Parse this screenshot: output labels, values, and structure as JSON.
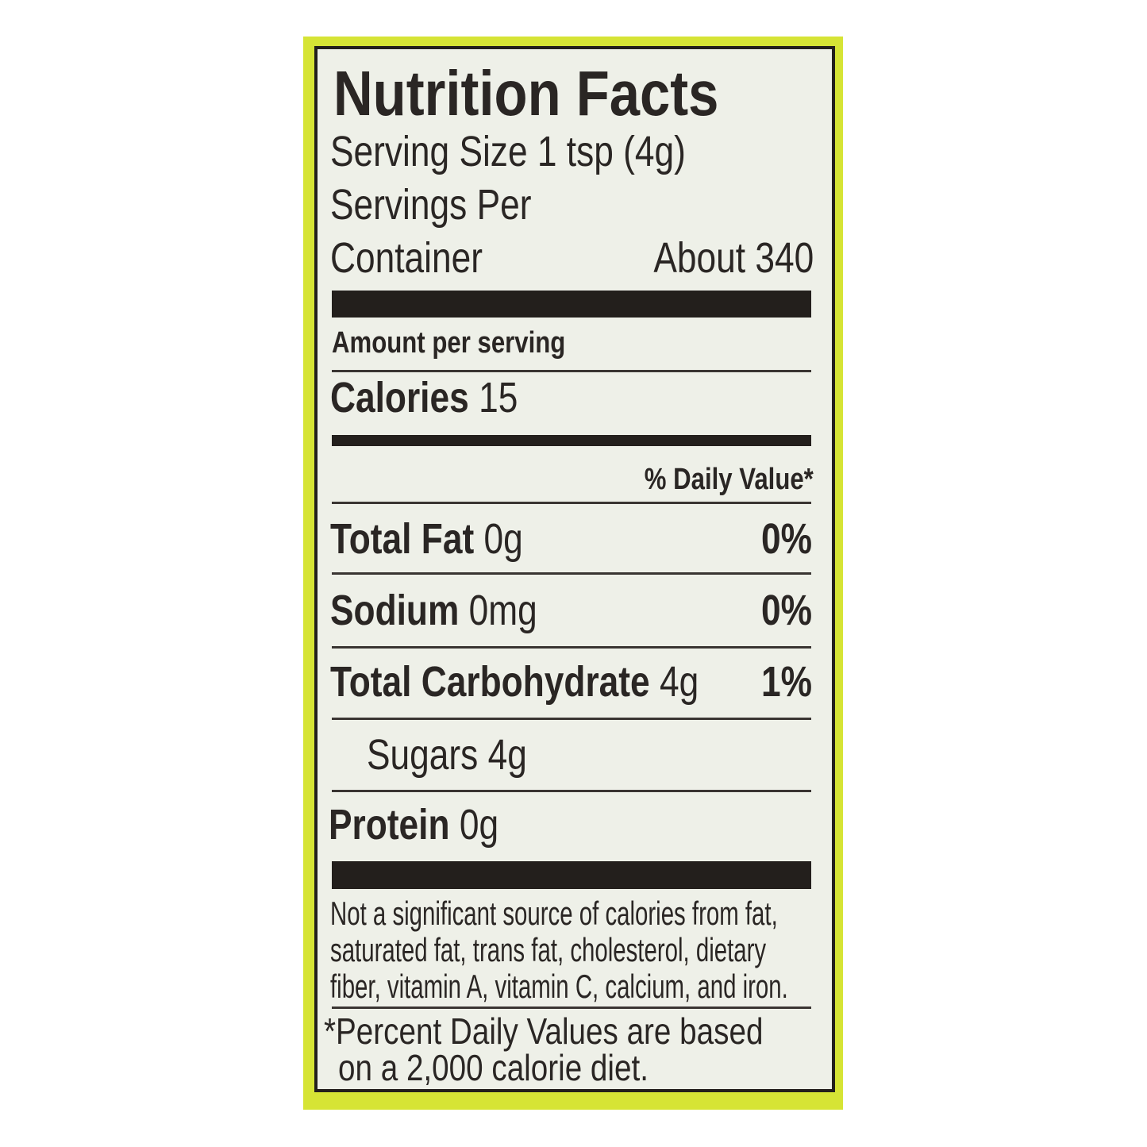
{
  "label": {
    "title": "Nutrition Facts",
    "serving_size": "Serving Size 1 tsp (4g)",
    "servings_per_line1": "Servings Per",
    "servings_per_line2": "Container",
    "servings_per_value": "About 340",
    "amount_per_serving": "Amount per serving",
    "calories_label": "Calories",
    "calories_value": "15",
    "daily_value_header": "% Daily Value*",
    "nutrients": [
      {
        "name": "Total Fat",
        "amount": "0g",
        "dv": "0%"
      },
      {
        "name": "Sodium",
        "amount": "0mg",
        "dv": "0%"
      },
      {
        "name": "Total Carbohydrate",
        "amount": "4g",
        "dv": "1%"
      },
      {
        "name": "Sugars",
        "amount": "4g",
        "dv": ""
      },
      {
        "name": "Protein",
        "amount": "0g",
        "dv": ""
      }
    ],
    "footnote_lines": [
      "Not a significant source of calories from fat,",
      "saturated fat, trans fat, cholesterol, dietary",
      "fiber, vitamin A, vitamin C, calcium, and iron."
    ],
    "dv_note_lines": [
      "*Percent Daily Values are based",
      "on a 2,000 calorie diet."
    ]
  },
  "colors": {
    "border": "#d6e435",
    "ink": "#231f1c",
    "paper": "#eef0e8"
  }
}
